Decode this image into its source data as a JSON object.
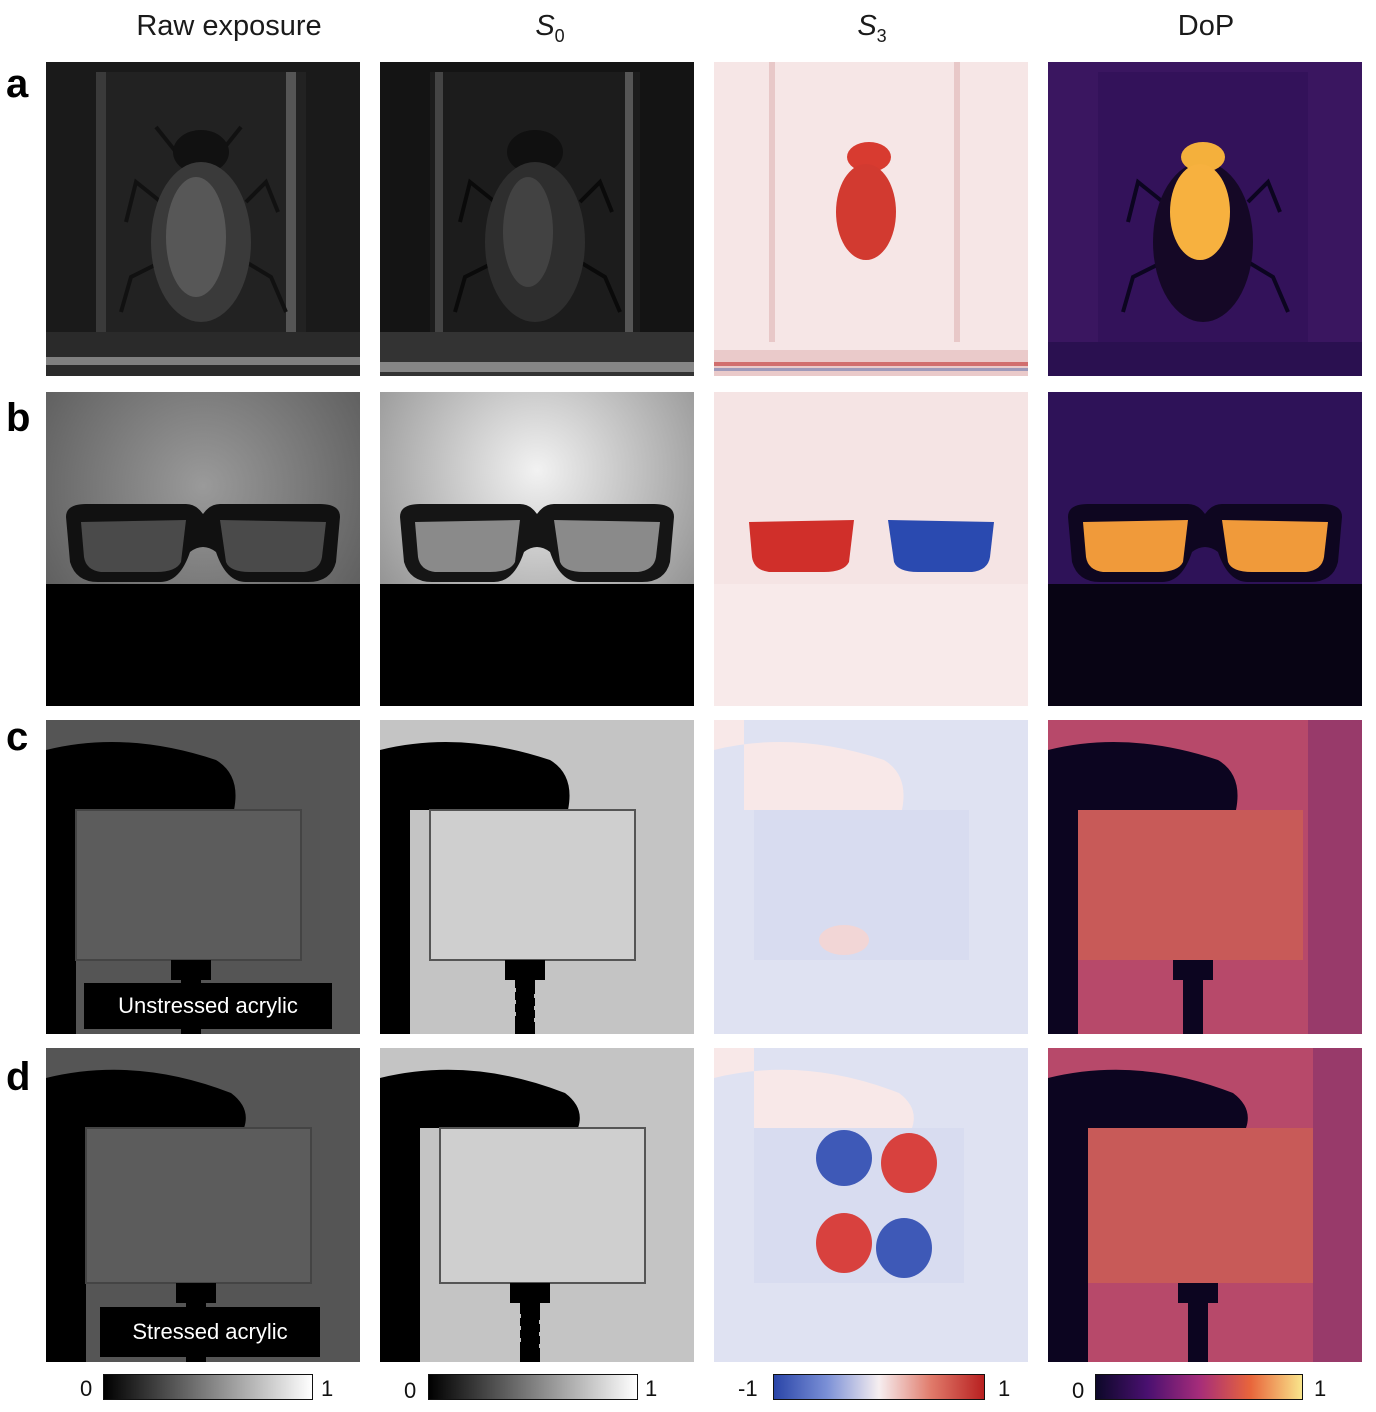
{
  "columns": {
    "raw": "Raw exposure",
    "s0_base": "S",
    "s0_sub": "0",
    "s3_base": "S",
    "s3_sub": "3",
    "dop": "DoP"
  },
  "rows": {
    "a": "a",
    "b": "b",
    "c": "c",
    "d": "d"
  },
  "captions": {
    "c": "Unstressed acrylic",
    "d": "Stressed acrylic"
  },
  "colorbars": {
    "raw": {
      "min": "0",
      "max": "1",
      "colors": [
        "#000000",
        "#ffffff"
      ]
    },
    "s0": {
      "min": "0",
      "max": "1",
      "colors": [
        "#000000",
        "#ffffff"
      ]
    },
    "s3": {
      "min": "-1",
      "max": "1",
      "colors": [
        "#2a45a8",
        "#7a8fd6",
        "#f6eef0",
        "#e07a6a",
        "#b82020"
      ]
    },
    "dop": {
      "min": "0",
      "max": "1",
      "colors": [
        "#0d0829",
        "#4a1070",
        "#a52c7a",
        "#e8653b",
        "#f9e58b"
      ]
    }
  }
}
